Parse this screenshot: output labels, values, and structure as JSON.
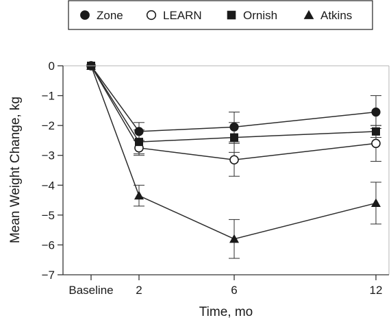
{
  "chart_data": {
    "type": "line",
    "title": "",
    "xlabel": "Time, mo",
    "ylabel": "Mean Weight Change, kg",
    "x_categories": [
      "Baseline",
      "2",
      "6",
      "12"
    ],
    "x_values": [
      0,
      2,
      6,
      12
    ],
    "ylim": [
      -7,
      0
    ],
    "yticks": [
      0,
      -1,
      -2,
      -3,
      -4,
      -5,
      -6,
      -7
    ],
    "ytick_labels": [
      "0",
      "−1",
      "−2",
      "−3",
      "−4",
      "−5",
      "−6",
      "−7"
    ],
    "grid": false,
    "legend_placement": "top",
    "series": [
      {
        "name": "Zone",
        "marker": "filled-circle",
        "values": [
          0,
          -2.2,
          -2.05,
          -1.55
        ],
        "err": [
          0,
          0.3,
          0.5,
          0.55
        ]
      },
      {
        "name": "LEARN",
        "marker": "open-circle",
        "values": [
          0,
          -2.75,
          -3.15,
          -2.6
        ],
        "err": [
          0,
          0.25,
          0.55,
          0.6
        ]
      },
      {
        "name": "Ornish",
        "marker": "filled-square",
        "values": [
          0,
          -2.55,
          -2.4,
          -2.2
        ],
        "err": [
          0,
          0.4,
          0.5,
          0.2
        ]
      },
      {
        "name": "Atkins",
        "marker": "filled-triangle",
        "values": [
          0,
          -4.35,
          -5.8,
          -4.6
        ],
        "err": [
          0,
          0.35,
          0.65,
          0.7
        ]
      }
    ],
    "colors": {
      "line": "#2b2b2b",
      "marker": "#1a1a1a",
      "axis": "#333333",
      "frame": "#b4b4b4"
    }
  }
}
